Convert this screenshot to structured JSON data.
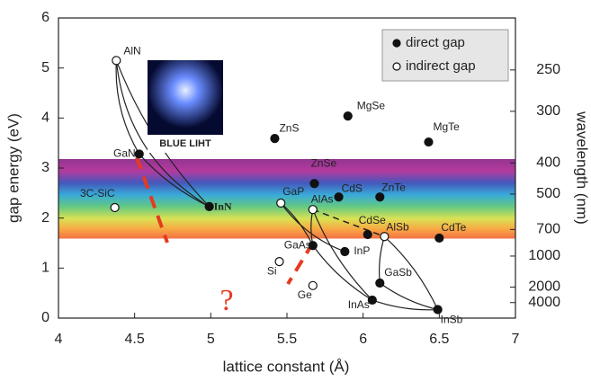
{
  "chart_data": {
    "type": "scatter",
    "x_label": "lattice constant (Å)",
    "y_label": "gap energy (eV)",
    "y2_label": "wavelength (nm)",
    "xlim": [
      4,
      7
    ],
    "xticks": [
      4,
      4.5,
      5,
      5.5,
      6,
      6.5,
      7
    ],
    "ylim": [
      0,
      6
    ],
    "yticks": [
      0,
      1,
      2,
      3,
      4,
      5,
      6
    ],
    "y2scale": "reciprocal",
    "y2lim": [
      null,
      206.7
    ],
    "y2ticks": [
      250,
      300,
      400,
      500,
      700,
      1000,
      2000,
      4000
    ],
    "spectrum_band": [
      1.59,
      3.18
    ],
    "legend": "upper right",
    "image_caption": "BLUE LIHT",
    "annotations": [
      "?"
    ],
    "series": [
      {
        "name": "direct gap",
        "color": "#111111",
        "marker": "filled",
        "labels": [
          "GaN",
          "InN",
          "ZnS",
          "MgSe",
          "MgTe",
          "ZnSe",
          "CdS",
          "ZnTe",
          "CdSe",
          "CdTe",
          "GaAs",
          "InP",
          "GaSb",
          "InAs",
          "InSb"
        ],
        "x": [
          4.53,
          4.99,
          5.42,
          5.9,
          6.43,
          5.68,
          5.84,
          6.11,
          6.03,
          6.5,
          5.67,
          5.88,
          6.11,
          6.06,
          6.49
        ],
        "y": [
          3.28,
          2.23,
          3.59,
          4.04,
          3.52,
          2.69,
          2.42,
          2.42,
          1.67,
          1.6,
          1.45,
          1.33,
          0.7,
          0.36,
          0.17
        ]
      },
      {
        "name": "indirect gap",
        "color": "#111111",
        "marker": "open",
        "labels": [
          "AlN",
          "3C-SiC",
          "GaP",
          "AlAs",
          "AlSb",
          "Si",
          "Ge"
        ],
        "x": [
          4.38,
          4.37,
          5.46,
          5.67,
          6.14,
          5.45,
          5.67
        ],
        "y": [
          5.15,
          2.21,
          2.3,
          2.17,
          1.63,
          1.13,
          0.65
        ]
      }
    ]
  }
}
